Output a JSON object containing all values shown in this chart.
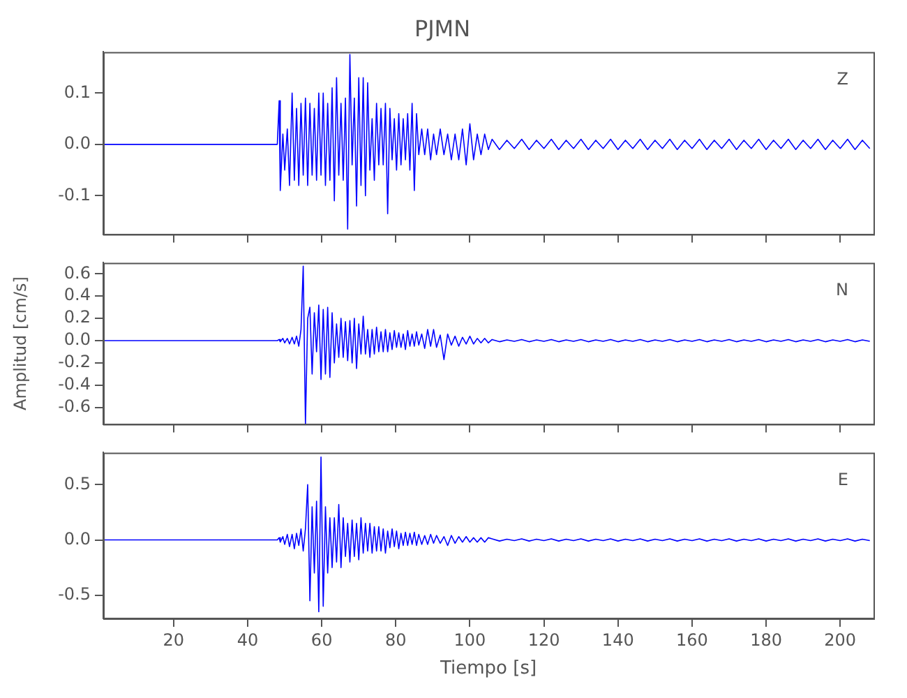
{
  "chart_data": [
    {
      "type": "line",
      "title": "PJMN",
      "annotations": [
        "Z"
      ],
      "marker": "none",
      "grid": false,
      "tick_labels": "y",
      "xlim": [
        1,
        209
      ],
      "xticks": [
        20,
        40,
        60,
        80,
        100,
        120,
        140,
        160,
        180,
        200
      ],
      "ylim": [
        -0.175,
        0.18
      ],
      "yticks": [
        {
          "value": 0.1,
          "label": "0.1"
        },
        {
          "value": 0,
          "label": "0.0"
        },
        {
          "value": -0.1,
          "label": "-0.1"
        }
      ],
      "x": [
        1,
        10,
        20,
        30,
        40,
        48,
        48.5,
        48.8,
        49.5,
        50,
        50.7,
        51.3,
        52,
        52.6,
        53.2,
        53.8,
        54.4,
        55,
        55.6,
        56.2,
        56.8,
        57.4,
        58,
        58.6,
        59.2,
        59.8,
        60.4,
        61,
        61.6,
        62.2,
        62.8,
        63.4,
        64,
        64.6,
        65.2,
        65.8,
        66.4,
        67,
        67.6,
        68.2,
        68.8,
        69.4,
        70,
        70.6,
        71.2,
        71.8,
        72.4,
        73,
        73.6,
        74.2,
        74.8,
        75.4,
        76,
        76.6,
        77.2,
        77.8,
        78.4,
        79,
        79.6,
        80.2,
        80.8,
        81.4,
        82,
        82.6,
        83.2,
        83.8,
        84.4,
        85,
        85.6,
        86.2,
        87,
        87.8,
        88.6,
        89.4,
        90.2,
        91,
        92,
        93,
        94,
        95,
        96,
        97,
        98,
        99,
        100,
        101,
        102,
        103,
        104,
        105,
        106,
        108,
        110,
        112,
        114,
        116,
        118,
        120,
        122,
        124,
        126,
        128,
        130,
        132,
        134,
        136,
        138,
        140,
        142,
        144,
        146,
        148,
        150,
        152,
        154,
        156,
        158,
        160,
        162,
        164,
        166,
        168,
        170,
        172,
        174,
        176,
        178,
        180,
        182,
        184,
        186,
        188,
        190,
        192,
        194,
        196,
        198,
        200,
        202,
        204,
        206,
        208
      ],
      "series": [
        {
          "color": "#0000ff",
          "values": [
            0,
            0,
            0,
            0,
            0,
            0,
            0.085,
            -0.09,
            0.02,
            -0.05,
            0.03,
            -0.08,
            0.1,
            -0.07,
            0.07,
            -0.08,
            0.08,
            -0.06,
            0.09,
            -0.08,
            0.08,
            -0.06,
            0.07,
            -0.07,
            0.1,
            -0.06,
            0.1,
            -0.08,
            0.08,
            -0.07,
            0.11,
            -0.11,
            0.13,
            -0.06,
            0.08,
            -0.07,
            0.09,
            -0.165,
            0.175,
            -0.04,
            0.09,
            -0.12,
            0.13,
            -0.08,
            0.13,
            -0.1,
            0.12,
            -0.05,
            0.05,
            -0.07,
            0.08,
            -0.04,
            0.07,
            -0.04,
            0.08,
            -0.135,
            0.07,
            -0.03,
            0.05,
            -0.05,
            0.06,
            -0.04,
            0.05,
            -0.03,
            0.06,
            -0.05,
            0.08,
            -0.09,
            0.06,
            -0.02,
            0.03,
            -0.02,
            0.03,
            -0.03,
            0.02,
            -0.02,
            0.03,
            -0.02,
            0.02,
            -0.03,
            0.02,
            -0.03,
            0.03,
            -0.04,
            0.04,
            -0.03,
            0.02,
            -0.02,
            0.02,
            -0.01,
            0.01,
            -0.01,
            0.008,
            -0.008,
            0.01,
            -0.01,
            0.008,
            -0.008,
            0.01,
            -0.01,
            0.008,
            -0.008,
            0.01,
            -0.01,
            0.008,
            -0.008,
            0.01,
            -0.01,
            0.008,
            -0.008,
            0.01,
            -0.01,
            0.008,
            -0.008,
            0.01,
            -0.01,
            0.008,
            -0.008,
            0.01,
            -0.01,
            0.008,
            -0.008,
            0.01,
            -0.01,
            0.008,
            -0.008,
            0.01,
            -0.01,
            0.008,
            -0.008,
            0.01,
            -0.01,
            0.008,
            -0.008,
            0.01,
            -0.01,
            0.008,
            -0.008,
            0.01,
            -0.01,
            0.008,
            -0.008
          ]
        }
      ]
    },
    {
      "type": "line",
      "ylabel": "Amplitud [cm/s]",
      "annotations": [
        "N"
      ],
      "marker": "none",
      "grid": false,
      "tick_labels": "y",
      "xlim": [
        1,
        209
      ],
      "xticks": [
        20,
        40,
        60,
        80,
        100,
        120,
        140,
        160,
        180,
        200
      ],
      "ylim": [
        -0.75,
        0.7
      ],
      "yticks": [
        {
          "value": 0.6,
          "label": "0.6"
        },
        {
          "value": 0.4,
          "label": "0.4"
        },
        {
          "value": 0.2,
          "label": "0.2"
        },
        {
          "value": 0,
          "label": "0.0"
        },
        {
          "value": -0.2,
          "label": "-0.2"
        },
        {
          "value": -0.4,
          "label": "-0.4"
        },
        {
          "value": -0.6,
          "label": "-0.6"
        }
      ],
      "x": [
        1,
        10,
        20,
        30,
        40,
        48,
        48.5,
        48.8,
        49.5,
        50,
        50.7,
        51.3,
        52,
        52.6,
        53.2,
        53.8,
        54.4,
        55,
        55.6,
        56.2,
        56.8,
        57.4,
        58,
        58.6,
        59.2,
        59.8,
        60.4,
        61,
        61.6,
        62.2,
        62.8,
        63.4,
        64,
        64.6,
        65.2,
        65.8,
        66.4,
        67,
        67.6,
        68.2,
        68.8,
        69.4,
        70,
        70.6,
        71.2,
        71.8,
        72.4,
        73,
        73.6,
        74.2,
        74.8,
        75.4,
        76,
        76.6,
        77.2,
        77.8,
        78.4,
        79,
        79.6,
        80.2,
        80.8,
        81.4,
        82,
        82.6,
        83.2,
        83.8,
        84.4,
        85,
        85.6,
        86.2,
        87,
        87.8,
        88.6,
        89.4,
        90.2,
        91,
        92,
        93,
        94,
        95,
        96,
        97,
        98,
        99,
        100,
        101,
        102,
        103,
        104,
        105,
        106,
        108,
        110,
        112,
        114,
        116,
        118,
        120,
        122,
        124,
        126,
        128,
        130,
        132,
        134,
        136,
        138,
        140,
        142,
        144,
        146,
        148,
        150,
        152,
        154,
        156,
        158,
        160,
        162,
        164,
        166,
        168,
        170,
        172,
        174,
        176,
        178,
        180,
        182,
        184,
        186,
        188,
        190,
        192,
        194,
        196,
        198,
        200,
        202,
        204,
        206,
        208
      ],
      "series": [
        {
          "color": "#0000ff",
          "values": [
            0,
            0,
            0,
            0,
            0,
            0,
            0.01,
            -0.01,
            0.02,
            -0.02,
            0.02,
            -0.03,
            0.03,
            -0.03,
            0.04,
            -0.05,
            0.1,
            0.67,
            -0.75,
            0.2,
            0.3,
            -0.3,
            0.25,
            -0.1,
            0.32,
            -0.35,
            0.28,
            -0.3,
            0.3,
            -0.33,
            0.25,
            -0.2,
            0.15,
            -0.15,
            0.2,
            -0.15,
            0.17,
            -0.18,
            0.18,
            -0.2,
            0.2,
            -0.25,
            0.15,
            -0.12,
            0.22,
            -0.12,
            0.1,
            -0.15,
            0.1,
            -0.12,
            0.12,
            -0.1,
            0.08,
            -0.1,
            0.1,
            -0.1,
            0.07,
            -0.08,
            0.09,
            -0.06,
            0.07,
            -0.06,
            0.06,
            -0.08,
            0.09,
            -0.05,
            0.06,
            -0.05,
            0.08,
            -0.04,
            0.06,
            -0.07,
            0.1,
            -0.05,
            0.1,
            -0.06,
            0.05,
            -0.17,
            0.06,
            -0.04,
            0.04,
            -0.05,
            0.03,
            -0.03,
            0.04,
            -0.03,
            0.02,
            -0.02,
            0.02,
            -0.02,
            0.01,
            -0.01,
            0.006,
            -0.006,
            0.01,
            -0.01,
            0.006,
            -0.006,
            0.01,
            -0.01,
            0.006,
            -0.006,
            0.01,
            -0.01,
            0.006,
            -0.006,
            0.01,
            -0.01,
            0.006,
            -0.006,
            0.01,
            -0.01,
            0.006,
            -0.006,
            0.01,
            -0.01,
            0.006,
            -0.006,
            0.01,
            -0.01,
            0.006,
            -0.006,
            0.01,
            -0.01,
            0.006,
            -0.006,
            0.01,
            -0.01,
            0.006,
            -0.006,
            0.01,
            -0.01,
            0.006,
            -0.006,
            0.01,
            -0.01,
            0.006,
            -0.006,
            0.01,
            -0.01,
            0.006,
            -0.006
          ]
        }
      ]
    },
    {
      "type": "line",
      "xlabel": "Tiempo [s]",
      "annotations": [
        "E"
      ],
      "marker": "none",
      "grid": false,
      "xlim": [
        1,
        209
      ],
      "xticks": [
        20,
        40,
        60,
        80,
        100,
        120,
        140,
        160,
        180,
        200
      ],
      "ylim": [
        -0.71,
        0.79
      ],
      "yticks": [
        {
          "value": 0.5,
          "label": "0.5"
        },
        {
          "value": 0,
          "label": "0.0"
        },
        {
          "value": -0.5,
          "label": "-0.5"
        }
      ],
      "x": [
        1,
        10,
        20,
        30,
        40,
        48,
        48.5,
        48.8,
        49.5,
        50,
        50.7,
        51.3,
        52,
        52.6,
        53.2,
        53.8,
        54.4,
        55,
        55.6,
        56.2,
        56.8,
        57.4,
        58,
        58.6,
        59.2,
        59.8,
        60.4,
        61,
        61.6,
        62.2,
        62.8,
        63.4,
        64,
        64.6,
        65.2,
        65.8,
        66.4,
        67,
        67.6,
        68.2,
        68.8,
        69.4,
        70,
        70.6,
        71.2,
        71.8,
        72.4,
        73,
        73.6,
        74.2,
        74.8,
        75.4,
        76,
        76.6,
        77.2,
        77.8,
        78.4,
        79,
        79.6,
        80.2,
        80.8,
        81.4,
        82,
        82.6,
        83.2,
        83.8,
        84.4,
        85,
        85.6,
        86.2,
        87,
        87.8,
        88.6,
        89.4,
        90.2,
        91,
        92,
        93,
        94,
        95,
        96,
        97,
        98,
        99,
        100,
        101,
        102,
        103,
        104,
        105,
        106,
        108,
        110,
        112,
        114,
        116,
        118,
        120,
        122,
        124,
        126,
        128,
        130,
        132,
        134,
        136,
        138,
        140,
        142,
        144,
        146,
        148,
        150,
        152,
        154,
        156,
        158,
        160,
        162,
        164,
        166,
        168,
        170,
        172,
        174,
        176,
        178,
        180,
        182,
        184,
        186,
        188,
        190,
        192,
        194,
        196,
        198,
        200,
        202,
        204,
        206,
        208
      ],
      "series": [
        {
          "color": "#0000ff",
          "values": [
            0,
            0,
            0,
            0,
            0,
            0,
            0.02,
            -0.02,
            0.03,
            -0.04,
            0.05,
            -0.06,
            0.05,
            -0.08,
            0.06,
            -0.05,
            0.1,
            -0.1,
            0.1,
            0.5,
            -0.55,
            0.3,
            -0.3,
            0.35,
            -0.65,
            0.75,
            -0.6,
            0.3,
            -0.3,
            0.2,
            -0.25,
            0.2,
            -0.2,
            0.32,
            -0.25,
            0.2,
            -0.15,
            0.15,
            -0.2,
            0.18,
            -0.15,
            0.15,
            -0.18,
            0.2,
            -0.12,
            0.15,
            -0.1,
            0.15,
            -0.12,
            0.12,
            -0.1,
            0.12,
            -0.1,
            0.1,
            -0.12,
            0.08,
            -0.07,
            0.1,
            -0.06,
            0.08,
            -0.08,
            0.06,
            -0.05,
            0.07,
            -0.05,
            0.06,
            -0.04,
            0.07,
            -0.05,
            0.05,
            -0.04,
            0.04,
            -0.04,
            0.05,
            -0.03,
            0.04,
            -0.03,
            0.03,
            -0.05,
            0.04,
            -0.03,
            0.03,
            -0.02,
            0.03,
            -0.02,
            0.02,
            -0.02,
            0.02,
            -0.02,
            0.02,
            0.01,
            -0.01,
            0.006,
            -0.006,
            0.01,
            -0.01,
            0.006,
            -0.006,
            0.01,
            -0.01,
            0.006,
            -0.006,
            0.01,
            -0.01,
            0.006,
            -0.006,
            0.01,
            -0.01,
            0.006,
            -0.006,
            0.01,
            -0.01,
            0.006,
            -0.006,
            0.01,
            -0.01,
            0.006,
            -0.006,
            0.01,
            -0.01,
            0.006,
            -0.006,
            0.01,
            -0.01,
            0.006,
            -0.006,
            0.01,
            -0.01,
            0.006,
            -0.006,
            0.01,
            -0.01,
            0.006,
            -0.006,
            0.01,
            -0.01,
            0.006,
            -0.006,
            0.01,
            -0.01,
            0.006,
            -0.006
          ]
        }
      ]
    }
  ]
}
